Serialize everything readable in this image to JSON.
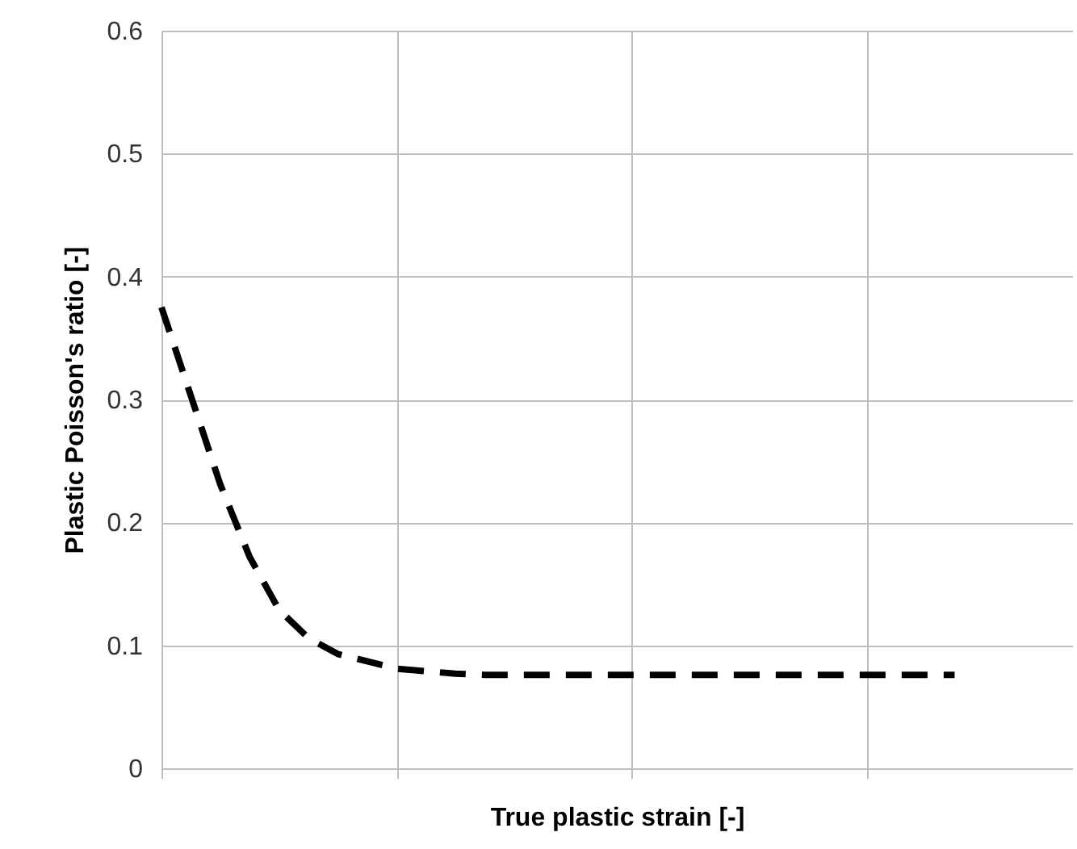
{
  "chart_data": {
    "type": "line",
    "xlabel": "True plastic strain [-]",
    "ylabel": "Plastic Poisson's ratio [-]",
    "categories": [
      null,
      null,
      null,
      null,
      null,
      null,
      null,
      null,
      null,
      null,
      null,
      null,
      null,
      null,
      null,
      null,
      null,
      null,
      null,
      null,
      null,
      null,
      null,
      null,
      null,
      null,
      null,
      null,
      null,
      null,
      null,
      null
    ],
    "series": [
      {
        "color": "#000000",
        "line_style": "dashed",
        "values": [
          0.375,
          0.303,
          0.231,
          0.172,
          0.129,
          0.106,
          0.093,
          0.087,
          0.081,
          0.079,
          0.077,
          0.076,
          0.076,
          0.076,
          0.076,
          0.076,
          0.076,
          0.076,
          0.076,
          0.076,
          0.076,
          0.076,
          0.076,
          0.076,
          0.076,
          0.076,
          0.076,
          0.076,
          null,
          null,
          null,
          null
        ]
      }
    ],
    "ylim": [
      0,
      0.6
    ],
    "yticks": [
      0,
      0.1,
      0.2,
      0.3,
      0.4,
      0.5,
      0.6
    ],
    "grid": true,
    "tick_labels": "y",
    "marker": "none"
  }
}
